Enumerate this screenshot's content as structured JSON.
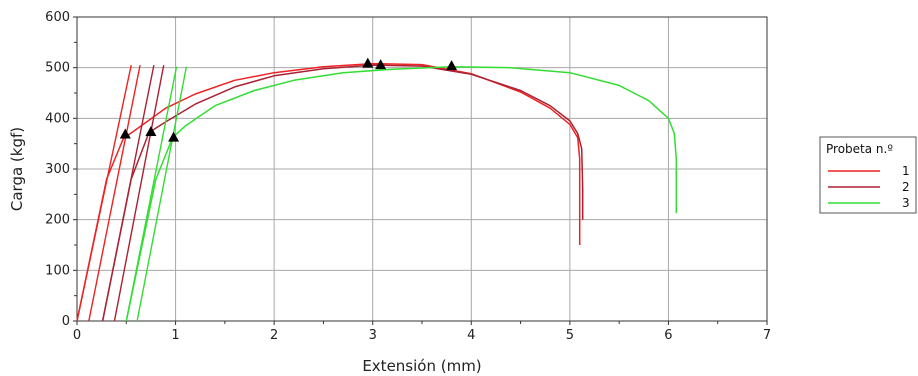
{
  "chart_data": {
    "type": "line",
    "title": "",
    "xlabel": "Extensión (mm)",
    "ylabel": "Carga (kgf)",
    "xlim": [
      0,
      7
    ],
    "ylim": [
      0,
      600
    ],
    "xticks": [
      0,
      1,
      2,
      3,
      4,
      5,
      6,
      7
    ],
    "yticks": [
      0,
      100,
      200,
      300,
      400,
      500,
      600
    ],
    "grid": true,
    "legend": {
      "title": "Probeta n.º",
      "placement": "right",
      "entries": [
        "1",
        "2",
        "3"
      ]
    },
    "series": [
      {
        "name": "1",
        "color": "#ee2222",
        "preload_lines": [
          {
            "x": [
              0.0,
              0.55
            ],
            "y": [
              0,
              505
            ]
          },
          {
            "x": [
              0.12,
              0.64
            ],
            "y": [
              0,
              505
            ]
          }
        ],
        "x": [
          0.0,
          0.3,
          0.47,
          0.65,
          0.9,
          1.2,
          1.6,
          2.0,
          2.5,
          3.0,
          3.5,
          4.0,
          4.5,
          4.8,
          5.0,
          5.08,
          5.1,
          5.1,
          5.1
        ],
        "y": [
          0,
          280,
          360,
          385,
          420,
          448,
          475,
          490,
          502,
          508,
          506,
          488,
          452,
          420,
          388,
          362,
          320,
          220,
          150
        ]
      },
      {
        "name": "2",
        "color": "#aa2233",
        "preload_lines": [
          {
            "x": [
              0.26,
              0.78
            ],
            "y": [
              0,
              505
            ]
          },
          {
            "x": [
              0.38,
              0.88
            ],
            "y": [
              0,
              505
            ]
          }
        ],
        "x": [
          0.26,
          0.55,
          0.73,
          0.9,
          1.2,
          1.6,
          2.0,
          2.5,
          3.0,
          3.5,
          4.0,
          4.5,
          4.8,
          5.0,
          5.08,
          5.12,
          5.13,
          5.13
        ],
        "y": [
          0,
          280,
          372,
          393,
          428,
          462,
          484,
          498,
          505,
          503,
          487,
          455,
          425,
          395,
          370,
          340,
          260,
          200
        ]
      },
      {
        "name": "3",
        "color": "#33dd33",
        "preload_lines": [
          {
            "x": [
              0.5,
              1.01
            ],
            "y": [
              0,
              502
            ]
          },
          {
            "x": [
              0.61,
              1.11
            ],
            "y": [
              0,
              502
            ]
          }
        ],
        "x": [
          0.5,
          0.8,
          0.97,
          1.1,
          1.4,
          1.8,
          2.2,
          2.7,
          3.2,
          3.8,
          4.4,
          5.0,
          5.5,
          5.8,
          6.0,
          6.06,
          6.08,
          6.08
        ],
        "y": [
          0,
          280,
          362,
          385,
          425,
          455,
          475,
          490,
          497,
          502,
          500,
          490,
          465,
          435,
          400,
          370,
          320,
          213
        ]
      }
    ],
    "markers": [
      {
        "x": 0.49,
        "y": 368
      },
      {
        "x": 0.75,
        "y": 373
      },
      {
        "x": 0.98,
        "y": 362
      },
      {
        "x": 2.95,
        "y": 508
      },
      {
        "x": 3.08,
        "y": 505
      },
      {
        "x": 3.8,
        "y": 503
      }
    ]
  }
}
